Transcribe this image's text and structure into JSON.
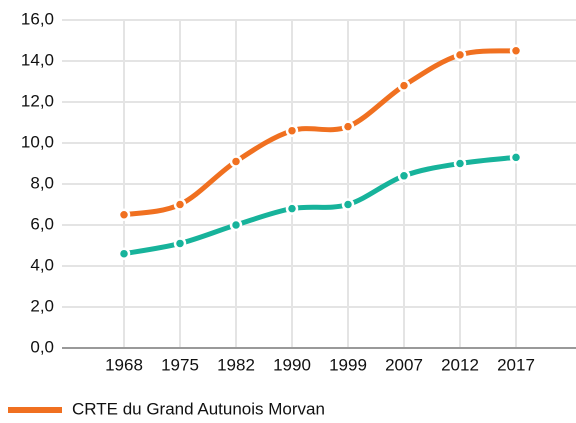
{
  "chart_data": {
    "type": "line",
    "categories": [
      "1968",
      "1975",
      "1982",
      "1990",
      "1999",
      "2007",
      "2012",
      "2017"
    ],
    "series": [
      {
        "name": "CRTE du Grand Autunois Morvan",
        "color": "#f07020",
        "values": [
          6.5,
          7.0,
          9.1,
          10.6,
          10.8,
          12.8,
          14.3,
          14.5
        ]
      },
      {
        "color": "#17b39b",
        "values": [
          4.6,
          5.1,
          6.0,
          6.8,
          7.0,
          8.4,
          9.0,
          9.3
        ]
      }
    ],
    "ylim": [
      0,
      16
    ],
    "yticks": [
      {
        "value": 0,
        "label": "0,0"
      },
      {
        "value": 2,
        "label": "2,0"
      },
      {
        "value": 4,
        "label": "4,0"
      },
      {
        "value": 6,
        "label": "6,0"
      },
      {
        "value": 8,
        "label": "8,0"
      },
      {
        "value": 10,
        "label": "10,0"
      },
      {
        "value": 12,
        "label": "12,0"
      },
      {
        "value": 14,
        "label": "14,0"
      },
      {
        "value": 16,
        "label": "16,0"
      }
    ],
    "grid": true
  }
}
